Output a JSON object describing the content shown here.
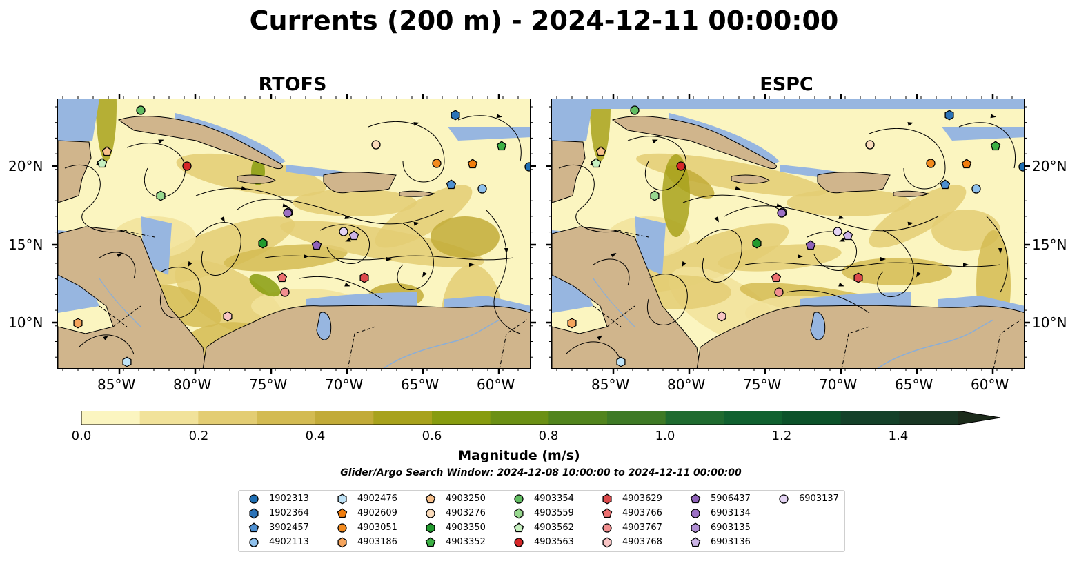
{
  "title": "Currents (200 m) - 2024-12-11 00:00:00",
  "panels": [
    {
      "title": "RTOFS"
    },
    {
      "title": "ESPC"
    }
  ],
  "axes": {
    "lon_labels": [
      "85°W",
      "80°W",
      "75°W",
      "70°W",
      "65°W",
      "60°W"
    ],
    "lat_labels": [
      "20°N",
      "15°N",
      "10°N"
    ]
  },
  "colorbar": {
    "label": "Magnitude (m/s)",
    "ticks": [
      "0.0",
      "0.2",
      "0.4",
      "0.6",
      "0.8",
      "1.0",
      "1.2",
      "1.4"
    ],
    "range": [
      0.0,
      1.5
    ],
    "extend": "max",
    "colors": [
      "#fbf5c0",
      "#f1e29a",
      "#e3cd73",
      "#d3bb52",
      "#c2ab38",
      "#a8a21c",
      "#879c0f",
      "#6b9014",
      "#51841d",
      "#3e7a25",
      "#1f6b2f",
      "#10612f",
      "#0c522a",
      "#144129",
      "#193724",
      "#1c2b1b"
    ]
  },
  "search_window": "Glider/Argo Search Window: 2024-12-08 10:00:00 to 2024-12-11 00:00:00",
  "legend": [
    {
      "id": "1902313",
      "shape": "circle",
      "color": "#1f6fb4"
    },
    {
      "id": "1902364",
      "shape": "hexagon",
      "color": "#2b73b8"
    },
    {
      "id": "3902457",
      "shape": "pentagon",
      "color": "#4d8fd0"
    },
    {
      "id": "4902113",
      "shape": "circle",
      "color": "#8ec0ec"
    },
    {
      "id": "4902476",
      "shape": "hexagon",
      "color": "#bfe3f7"
    },
    {
      "id": "4902609",
      "shape": "pentagon",
      "color": "#f07d0e"
    },
    {
      "id": "4903051",
      "shape": "circle",
      "color": "#f28a1e"
    },
    {
      "id": "4903186",
      "shape": "hexagon",
      "color": "#f5a45c"
    },
    {
      "id": "4903250",
      "shape": "pentagon",
      "color": "#f7c08c"
    },
    {
      "id": "4903276",
      "shape": "circle",
      "color": "#fbdcbc"
    },
    {
      "id": "4903350",
      "shape": "hexagon",
      "color": "#229a2e"
    },
    {
      "id": "4903352",
      "shape": "pentagon",
      "color": "#3cb044"
    },
    {
      "id": "4903354",
      "shape": "circle",
      "color": "#62bd62"
    },
    {
      "id": "4903559",
      "shape": "hexagon",
      "color": "#98d88f"
    },
    {
      "id": "4903562",
      "shape": "pentagon",
      "color": "#c6f0c0"
    },
    {
      "id": "4903563",
      "shape": "circle",
      "color": "#d62728"
    },
    {
      "id": "4903629",
      "shape": "hexagon",
      "color": "#dc4a4c"
    },
    {
      "id": "4903766",
      "shape": "pentagon",
      "color": "#ec6f70"
    },
    {
      "id": "4903767",
      "shape": "circle",
      "color": "#f18f90"
    },
    {
      "id": "4903768",
      "shape": "hexagon",
      "color": "#f8c4c4"
    },
    {
      "id": "5906437",
      "shape": "pentagon",
      "color": "#8f62b9"
    },
    {
      "id": "6903134",
      "shape": "circle",
      "color": "#9b6fc4"
    },
    {
      "id": "6903135",
      "shape": "hexagon",
      "color": "#b08fd4"
    },
    {
      "id": "6903136",
      "shape": "pentagon",
      "color": "#ccb4e6"
    },
    {
      "id": "6903137",
      "shape": "circle",
      "color": "#e4d4f4"
    }
  ],
  "colors": {
    "land": "#d0b58c",
    "shallow_water": "#97b6e0",
    "rivers": "#8aaed8"
  }
}
